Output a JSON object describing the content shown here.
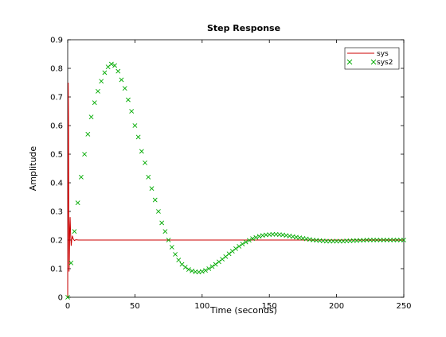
{
  "chart_data": {
    "type": "line",
    "title": "Step Response",
    "xlabel": "Time (seconds)",
    "ylabel": "Amplitude",
    "xlim": [
      0,
      250
    ],
    "ylim": [
      0,
      0.9
    ],
    "xticks": [
      0,
      50,
      100,
      150,
      200,
      250
    ],
    "xtick_labels": [
      "0",
      "50",
      "100",
      "150",
      "200",
      "250"
    ],
    "yticks": [
      0,
      0.1,
      0.2,
      0.3,
      0.4,
      0.5,
      0.6,
      0.7,
      0.8,
      0.9
    ],
    "ytick_labels": [
      "0",
      "0.1",
      "0.2",
      "0.3",
      "0.4",
      "0.5",
      "0.6",
      "0.7",
      "0.8",
      "0.9"
    ],
    "grid": false,
    "legend_position": "top-right",
    "series": [
      {
        "name": "sys",
        "style": "line",
        "color": "#cc0000",
        "x": [
          0,
          0.2,
          0.4,
          0.6,
          0.8,
          1.0,
          1.2,
          1.5,
          1.8,
          2.2,
          2.6,
          3.0,
          3.5,
          4,
          5,
          6,
          8,
          10,
          20,
          50,
          100,
          150,
          200,
          250
        ],
        "y": [
          0,
          0.42,
          0.75,
          0.62,
          0.28,
          0.09,
          0.12,
          0.24,
          0.28,
          0.22,
          0.18,
          0.2,
          0.215,
          0.205,
          0.198,
          0.201,
          0.2,
          0.2,
          0.2,
          0.2,
          0.2,
          0.2,
          0.2,
          0.2
        ]
      },
      {
        "name": "sys2",
        "style": "markers",
        "marker": "x",
        "color": "#00aa00",
        "x": [
          0,
          2.5,
          5,
          7.5,
          10,
          12.5,
          15,
          17.5,
          20,
          22.5,
          25,
          27.5,
          30,
          32.5,
          35,
          37.5,
          40,
          42.5,
          45,
          47.5,
          50,
          52.5,
          55,
          57.5,
          60,
          62.5,
          65,
          67.5,
          70,
          72.5,
          75,
          77.5,
          80,
          82.5,
          85,
          87.5,
          90,
          92.5,
          95,
          97.5,
          100,
          102.5,
          105,
          107.5,
          110,
          112.5,
          115,
          117.5,
          120,
          122.5,
          125,
          127.5,
          130,
          132.5,
          135,
          137.5,
          140,
          142.5,
          145,
          147.5,
          150,
          152.5,
          155,
          157.5,
          160,
          162.5,
          165,
          167.5,
          170,
          172.5,
          175,
          177.5,
          180,
          182.5,
          185,
          187.5,
          190,
          192.5,
          195,
          197.5,
          200,
          202.5,
          205,
          207.5,
          210,
          212.5,
          215,
          217.5,
          220,
          222.5,
          225,
          227.5,
          230,
          232.5,
          235,
          237.5,
          240,
          242.5,
          245,
          247.5,
          250
        ],
        "y": [
          0.0,
          0.12,
          0.23,
          0.33,
          0.42,
          0.5,
          0.57,
          0.63,
          0.68,
          0.72,
          0.755,
          0.785,
          0.805,
          0.815,
          0.81,
          0.79,
          0.76,
          0.73,
          0.69,
          0.65,
          0.6,
          0.56,
          0.51,
          0.47,
          0.42,
          0.38,
          0.34,
          0.3,
          0.26,
          0.23,
          0.2,
          0.175,
          0.15,
          0.13,
          0.115,
          0.105,
          0.097,
          0.092,
          0.089,
          0.088,
          0.09,
          0.094,
          0.1,
          0.107,
          0.115,
          0.124,
          0.133,
          0.142,
          0.152,
          0.161,
          0.17,
          0.178,
          0.186,
          0.193,
          0.199,
          0.205,
          0.209,
          0.213,
          0.216,
          0.218,
          0.219,
          0.22,
          0.22,
          0.219,
          0.218,
          0.216,
          0.214,
          0.212,
          0.21,
          0.208,
          0.206,
          0.204,
          0.202,
          0.2,
          0.199,
          0.198,
          0.197,
          0.196,
          0.196,
          0.196,
          0.196,
          0.196,
          0.196,
          0.197,
          0.197,
          0.198,
          0.198,
          0.199,
          0.199,
          0.2,
          0.2,
          0.2,
          0.2,
          0.2,
          0.2,
          0.2,
          0.2,
          0.2,
          0.2,
          0.2,
          0.2
        ]
      }
    ]
  }
}
